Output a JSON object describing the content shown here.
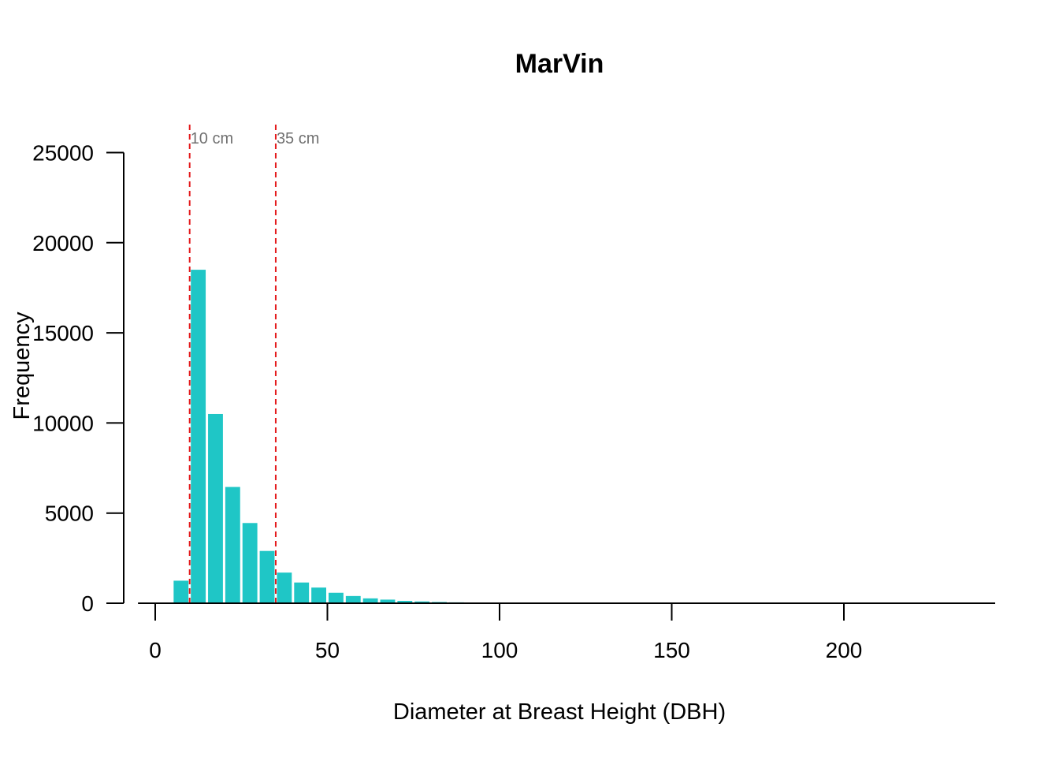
{
  "chart_data": {
    "type": "bar",
    "title": "MarVin",
    "xlabel": "Diameter at Breast Height (DBH)",
    "ylabel": "Frequency",
    "xlim": [
      -5,
      245
    ],
    "ylim": [
      0,
      25000
    ],
    "xticks": [
      0,
      50,
      100,
      150,
      200
    ],
    "yticks": [
      0,
      5000,
      10000,
      15000,
      20000,
      25000
    ],
    "bin_width": 5,
    "bar_color": "#1fc6c6",
    "bins": [
      {
        "x0": 5,
        "x1": 10,
        "value": 1250
      },
      {
        "x0": 10,
        "x1": 15,
        "value": 18500
      },
      {
        "x0": 15,
        "x1": 20,
        "value": 10500
      },
      {
        "x0": 20,
        "x1": 25,
        "value": 6450
      },
      {
        "x0": 25,
        "x1": 30,
        "value": 4450
      },
      {
        "x0": 30,
        "x1": 35,
        "value": 2900
      },
      {
        "x0": 35,
        "x1": 40,
        "value": 1700
      },
      {
        "x0": 40,
        "x1": 45,
        "value": 1150
      },
      {
        "x0": 45,
        "x1": 50,
        "value": 870
      },
      {
        "x0": 50,
        "x1": 55,
        "value": 580
      },
      {
        "x0": 55,
        "x1": 60,
        "value": 400
      },
      {
        "x0": 60,
        "x1": 65,
        "value": 270
      },
      {
        "x0": 65,
        "x1": 70,
        "value": 200
      },
      {
        "x0": 70,
        "x1": 75,
        "value": 130
      },
      {
        "x0": 75,
        "x1": 80,
        "value": 100
      },
      {
        "x0": 80,
        "x1": 85,
        "value": 70
      },
      {
        "x0": 85,
        "x1": 90,
        "value": 50
      },
      {
        "x0": 90,
        "x1": 95,
        "value": 30
      },
      {
        "x0": 95,
        "x1": 100,
        "value": 20
      }
    ],
    "reference_lines": [
      {
        "x": 10,
        "label": "10 cm",
        "color": "#e41a1c"
      },
      {
        "x": 35,
        "label": "35 cm",
        "color": "#e41a1c"
      }
    ],
    "grid": false,
    "legend": "none"
  }
}
